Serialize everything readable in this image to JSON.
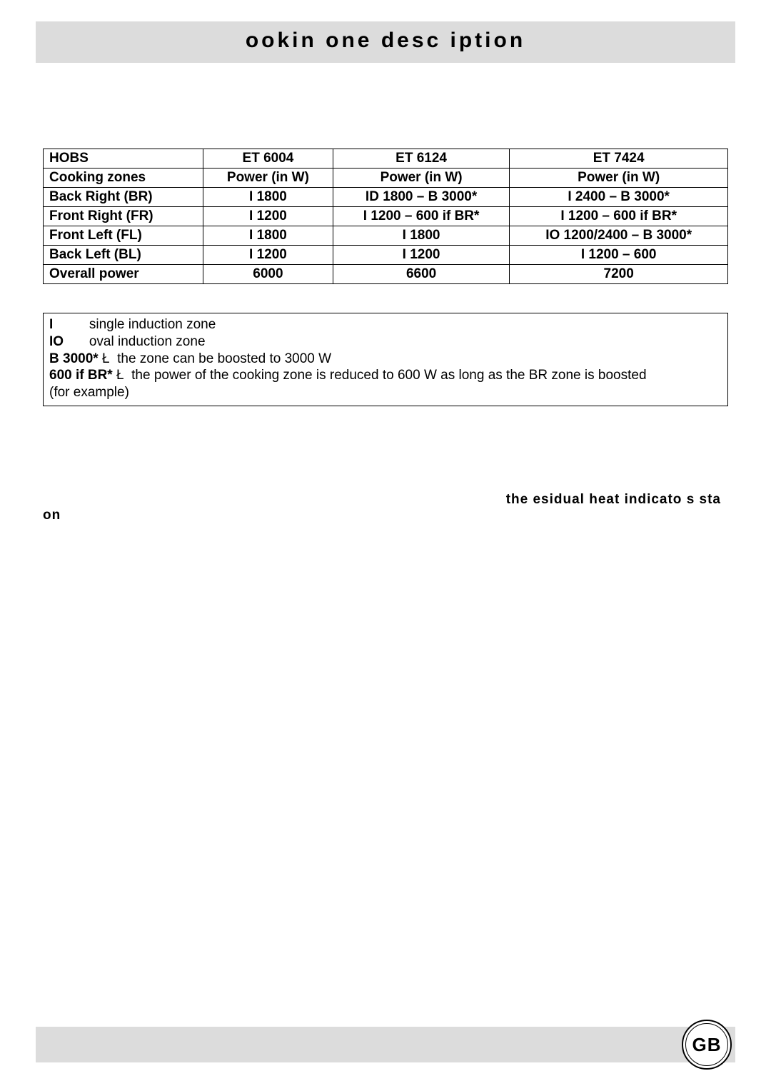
{
  "title": "ookin   one desc iption",
  "table": {
    "columns": [
      "HOBS",
      "ET 6004",
      "ET 6124",
      "ET 7424"
    ],
    "rows": [
      [
        "Cooking zones",
        "Power (in W)",
        "Power (in W)",
        "Power (in W)"
      ],
      [
        "Back Right (BR)",
        "I 1800",
        "ID 1800 – B 3000*",
        "I 2400 – B 3000*"
      ],
      [
        "Front Right (FR)",
        "I 1200",
        "I 1200 – 600 if BR*",
        "I 1200 – 600 if BR*"
      ],
      [
        "Front Left (FL)",
        "I 1800",
        "I 1800",
        "IO 1200/2400 – B 3000*"
      ],
      [
        "Back Left (BL)",
        "I 1200",
        "I 1200",
        "I 1200 – 600"
      ],
      [
        "Overall power",
        "6000",
        "6600",
        "7200"
      ]
    ]
  },
  "legend": {
    "l1_key": "I",
    "l1_text": "single induction zone",
    "l2_key": "IO",
    "l2_text": "oval induction zone",
    "l3_key": "B 3000*",
    "l3_arrow": "Ł",
    "l3_text": "the zone can be boosted to 3000 W",
    "l4_key": "600 if BR*",
    "l4_arrow": "Ł",
    "l4_text": "the power of the cooking zone is reduced to 600 W as long as the BR zone is boosted",
    "l5_text": "(for example)"
  },
  "note_right": "the  esidual heat indicato s sta",
  "note_left": "on",
  "badge": "GB"
}
